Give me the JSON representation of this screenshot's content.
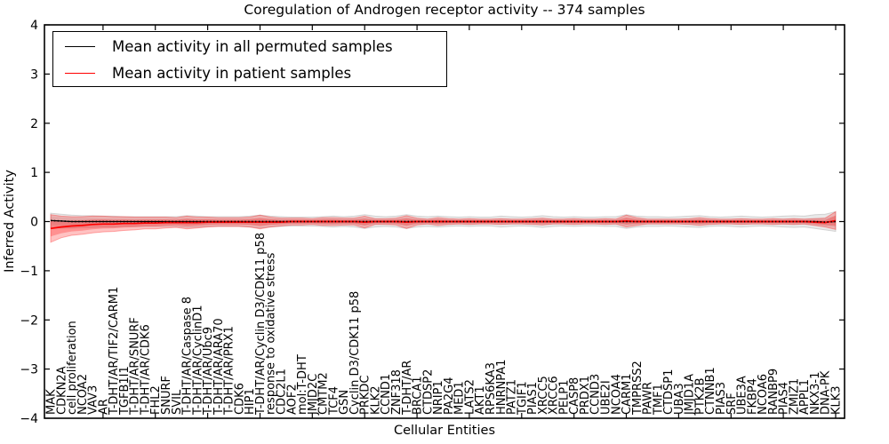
{
  "chart_data": {
    "type": "line",
    "title": "Coregulation of Androgen receptor activity -- 374 samples",
    "xlabel": "Cellular Entities",
    "ylabel": "Inferred Activity",
    "ylim": [
      -4,
      4
    ],
    "yticks": [
      4,
      3,
      2,
      1,
      0,
      -1,
      -2,
      -3,
      -4
    ],
    "grid": false,
    "legend_position": "upper left",
    "band_note": "shaded bands show spread around each mean line",
    "categories": [
      "MAK",
      "CDKN2A",
      "cell proliferation",
      "NCOA2",
      "VAV3",
      "AR",
      "T-DHT/AR/TIF2/CARM1",
      "TGFB1I1",
      "T-DHT/AR/SNURF",
      "T-DHT/AR/CDK6",
      "FHL2",
      "SNURF",
      "SVIL",
      "T-DHT/AR/Caspase 8",
      "T-DHT/AR/CyclinD1",
      "T-DHT/AR/Ubc9",
      "T-DHT/AR/ARA70",
      "T-DHT/AR/PRX1",
      "CDK6",
      "HIP1",
      "T-DHT/AR/Cyclin D3/CDK11 p58",
      "response to oxidative stress",
      "CDC2L1",
      "AOF2",
      "mol:T-DHT",
      "JMJD2C",
      "CMTM2",
      "TCF4",
      "GSN",
      "Cyclin D3/CDK11 p58",
      "PRKDC",
      "KLK2",
      "CCND1",
      "ZNF318",
      "T-DHT/AR",
      "BRCA1",
      "CTDSP2",
      "NRIP1",
      "PA2G4",
      "MED1",
      "LATS2",
      "AKT1",
      "RPS6KA3",
      "HNRNPA1",
      "PATZ1",
      "TGIF1",
      "PIAS1",
      "XRCC5",
      "XRCC6",
      "PELP1",
      "CASP8",
      "PRDX1",
      "CCND3",
      "UBE2I",
      "NCOA4",
      "CARM1",
      "TMPRSS2",
      "PAWR",
      "TMF1",
      "CTDSP1",
      "UBA3",
      "JMJD1A",
      "PTK2B",
      "CTNNB1",
      "PIAS3",
      "SRF",
      "UBE3A",
      "FKBP4",
      "NCOA6",
      "RANBP9",
      "PIAS4",
      "ZMIZ1",
      "APPL1",
      "NKX3-1",
      "DNA-PK",
      "KLK3"
    ],
    "series": [
      {
        "name": "Mean activity in all permuted samples",
        "color": "#000000",
        "values": [
          0.02,
          0.01,
          0,
          0,
          0,
          0,
          0,
          0,
          0,
          0,
          0,
          0,
          0,
          0,
          0,
          0,
          0,
          0,
          0,
          0,
          0,
          0,
          0,
          0,
          0,
          0,
          0,
          0,
          0,
          0,
          0,
          0,
          0,
          0,
          0,
          0,
          0,
          0,
          0,
          0,
          0,
          0,
          0,
          0,
          0,
          0,
          0,
          0,
          0,
          0,
          0,
          0,
          0,
          0,
          0,
          0,
          0,
          0,
          0,
          0,
          0,
          0,
          0,
          0,
          0,
          0,
          0,
          0,
          0,
          0,
          0,
          0,
          0,
          0,
          -0.01,
          0
        ],
        "band_halfwidth": [
          0.15,
          0.14,
          0.13,
          0.12,
          0.12,
          0.11,
          0.11,
          0.1,
          0.1,
          0.1,
          0.1,
          0.1,
          0.1,
          0.12,
          0.11,
          0.1,
          0.1,
          0.1,
          0.1,
          0.11,
          0.13,
          0.11,
          0.1,
          0.09,
          0.09,
          0.09,
          0.1,
          0.11,
          0.1,
          0.11,
          0.14,
          0.11,
          0.1,
          0.11,
          0.14,
          0.11,
          0.1,
          0.11,
          0.1,
          0.09,
          0.1,
          0.09,
          0.09,
          0.11,
          0.1,
          0.09,
          0.1,
          0.12,
          0.1,
          0.09,
          0.1,
          0.09,
          0.09,
          0.1,
          0.1,
          0.14,
          0.11,
          0.1,
          0.1,
          0.09,
          0.1,
          0.11,
          0.12,
          0.1,
          0.09,
          0.1,
          0.11,
          0.1,
          0.09,
          0.1,
          0.11,
          0.12,
          0.11,
          0.14,
          0.16,
          0.2
        ]
      },
      {
        "name": "Mean activity in patient samples",
        "color": "#ff0000",
        "values": [
          -0.14,
          -0.11,
          -0.09,
          -0.08,
          -0.06,
          -0.05,
          -0.05,
          -0.04,
          -0.04,
          -0.03,
          -0.03,
          -0.02,
          -0.02,
          -0.02,
          -0.02,
          -0.01,
          -0.01,
          -0.01,
          -0.01,
          -0.01,
          -0.01,
          -0.01,
          -0.01,
          0,
          0,
          0,
          0,
          0,
          0,
          0,
          -0.01,
          0,
          0,
          0,
          -0.01,
          0,
          0,
          0,
          0,
          0,
          0,
          0,
          0,
          0,
          0,
          0,
          0,
          0,
          0,
          0,
          0,
          0,
          0,
          0,
          0,
          0.01,
          0,
          0,
          0,
          0,
          0,
          0,
          0,
          0,
          0,
          0,
          0,
          0,
          0,
          0,
          0,
          0,
          0,
          -0.01,
          -0.02,
          0.02
        ],
        "band_halfwidth": [
          0.28,
          0.22,
          0.19,
          0.18,
          0.17,
          0.16,
          0.15,
          0.14,
          0.13,
          0.12,
          0.12,
          0.11,
          0.1,
          0.13,
          0.11,
          0.1,
          0.09,
          0.09,
          0.09,
          0.1,
          0.14,
          0.1,
          0.08,
          0.07,
          0.07,
          0.06,
          0.08,
          0.08,
          0.07,
          0.07,
          0.12,
          0.06,
          0.06,
          0.07,
          0.13,
          0.07,
          0.05,
          0.08,
          0.06,
          0.05,
          0.06,
          0.05,
          0.05,
          0.06,
          0.05,
          0.05,
          0.06,
          0.07,
          0.05,
          0.05,
          0.06,
          0.05,
          0.05,
          0.06,
          0.05,
          0.12,
          0.08,
          0.05,
          0.05,
          0.05,
          0.05,
          0.06,
          0.08,
          0.06,
          0.05,
          0.05,
          0.06,
          0.05,
          0.05,
          0.06,
          0.05,
          0.06,
          0.05,
          0.07,
          0.09,
          0.18
        ]
      }
    ]
  }
}
